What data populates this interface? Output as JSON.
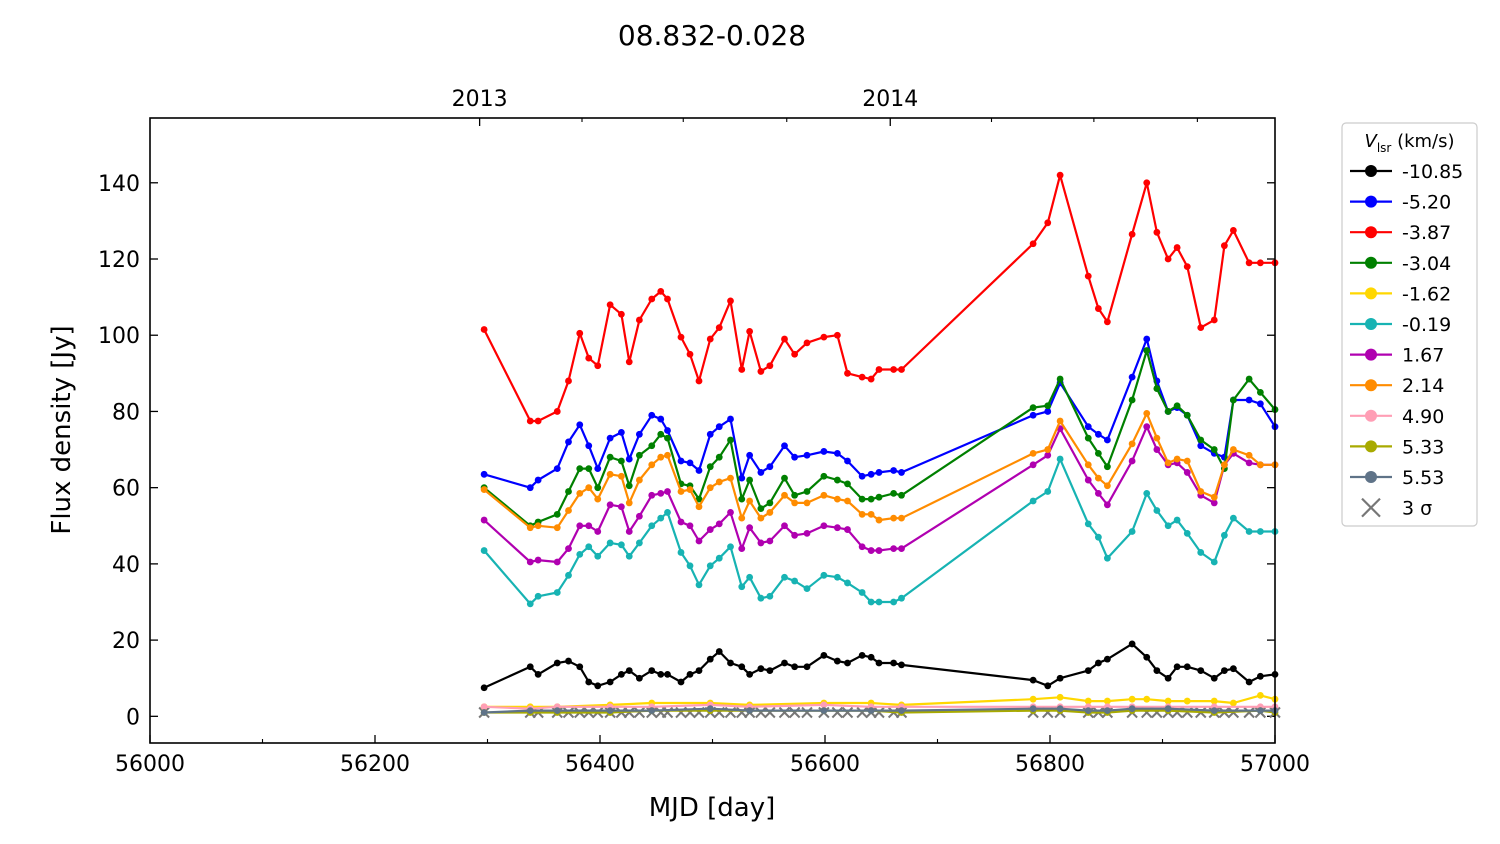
{
  "chart_data": {
    "type": "line",
    "title": "08.832-0.028",
    "xlabel": "MJD [day]",
    "ylabel": "Flux density [Jy]",
    "xlim": [
      56000,
      57000
    ],
    "ylim": [
      -7,
      157
    ],
    "x_ticks": [
      "56000",
      "56200",
      "56400",
      "56600",
      "56800",
      "57000"
    ],
    "y_ticks": [
      "0",
      "20",
      "40",
      "60",
      "80",
      "100",
      "120",
      "140"
    ],
    "top_axis": {
      "ticks": [
        {
          "mjd": 56293,
          "label": "2013"
        },
        {
          "mjd": 56658,
          "label": "2014"
        }
      ],
      "minor_ticks_mjd": [
        56384,
        56474,
        56566,
        56748,
        56839,
        56931
      ]
    },
    "legend": {
      "title_symbol": "V",
      "title_subscript": "lsr",
      "title_unit": " (km/s)",
      "position": "outside-right-top",
      "sigma_label": "3 σ"
    },
    "series": [
      {
        "name": "-10.85",
        "color": "#000000",
        "x": [
          56297,
          56338,
          56345,
          56362,
          56372,
          56382,
          56390,
          56398,
          56409,
          56419,
          56426,
          56435,
          56446,
          56454,
          56460,
          56472,
          56480,
          56488,
          56498,
          56506,
          56516,
          56526,
          56533,
          56543,
          56551,
          56564,
          56573,
          56584,
          56599,
          56611,
          56620,
          56633,
          56641,
          56648,
          56661,
          56668,
          56785,
          56798,
          56809,
          56834,
          56843,
          56851,
          56873,
          56886,
          56895,
          56905,
          56913,
          56922,
          56934,
          56946,
          56955,
          56963,
          56977,
          56987,
          57000
        ],
        "y": [
          7.5,
          13,
          11,
          14,
          14.5,
          13,
          9,
          8,
          9,
          11,
          12,
          10,
          12,
          11,
          11,
          9,
          11,
          12,
          15,
          17,
          14,
          13,
          11,
          12.5,
          12,
          14,
          13,
          13,
          16,
          14.5,
          14,
          16,
          15.5,
          14,
          14,
          13.5,
          9.5,
          8,
          10,
          12,
          14,
          15,
          19,
          15.5,
          12,
          10,
          13,
          13,
          12,
          10,
          12,
          12.5,
          9,
          10.5,
          11
        ]
      },
      {
        "name": "-5.20",
        "color": "#0000ff",
        "x": [
          56297,
          56338,
          56345,
          56362,
          56372,
          56382,
          56390,
          56398,
          56409,
          56419,
          56426,
          56435,
          56446,
          56454,
          56460,
          56472,
          56480,
          56488,
          56498,
          56506,
          56516,
          56526,
          56533,
          56543,
          56551,
          56564,
          56573,
          56584,
          56599,
          56611,
          56620,
          56633,
          56641,
          56648,
          56661,
          56668,
          56785,
          56798,
          56809,
          56834,
          56843,
          56851,
          56873,
          56886,
          56895,
          56905,
          56913,
          56922,
          56934,
          56946,
          56955,
          56963,
          56977,
          56987,
          57000
        ],
        "y": [
          63.5,
          60,
          62,
          65,
          72,
          76.5,
          71,
          65,
          73,
          74.5,
          67.5,
          74,
          79,
          78,
          75,
          67,
          66.5,
          64.5,
          74,
          76,
          78,
          62.5,
          68.5,
          64,
          65.5,
          71,
          68,
          68.5,
          69.5,
          69,
          67,
          63,
          63.5,
          64,
          64.5,
          64,
          79,
          80,
          87.5,
          76,
          74,
          72.5,
          89,
          99,
          88,
          80,
          81,
          79,
          71,
          69,
          68,
          83,
          83,
          82,
          76
        ]
      },
      {
        "name": "-3.87",
        "color": "#ff0000",
        "x": [
          56297,
          56338,
          56345,
          56362,
          56372,
          56382,
          56390,
          56398,
          56409,
          56419,
          56426,
          56435,
          56446,
          56454,
          56460,
          56472,
          56480,
          56488,
          56498,
          56506,
          56516,
          56526,
          56533,
          56543,
          56551,
          56564,
          56573,
          56584,
          56599,
          56611,
          56620,
          56633,
          56641,
          56648,
          56661,
          56668,
          56785,
          56798,
          56809,
          56834,
          56843,
          56851,
          56873,
          56886,
          56895,
          56905,
          56913,
          56922,
          56934,
          56946,
          56955,
          56963,
          56977,
          56987,
          57000
        ],
        "y": [
          101.5,
          77.5,
          77.5,
          80,
          88,
          100.5,
          94,
          92,
          108,
          105.5,
          93,
          104,
          109.5,
          111.5,
          109.5,
          99.5,
          95,
          88,
          99,
          102,
          109,
          91,
          101,
          90.5,
          92,
          99,
          95,
          98,
          99.5,
          100,
          90,
          89,
          88.5,
          91,
          91,
          91,
          124,
          129.5,
          142,
          115.5,
          107,
          103.5,
          126.5,
          140,
          127,
          120,
          123,
          118,
          102,
          104,
          123.5,
          127.5,
          119,
          119,
          119
        ]
      },
      {
        "name": "-3.04",
        "color": "#008000",
        "x": [
          56297,
          56338,
          56345,
          56362,
          56372,
          56382,
          56390,
          56398,
          56409,
          56419,
          56426,
          56435,
          56446,
          56454,
          56460,
          56472,
          56480,
          56488,
          56498,
          56506,
          56516,
          56526,
          56533,
          56543,
          56551,
          56564,
          56573,
          56584,
          56599,
          56611,
          56620,
          56633,
          56641,
          56648,
          56661,
          56668,
          56785,
          56798,
          56809,
          56834,
          56843,
          56851,
          56873,
          56886,
          56895,
          56905,
          56913,
          56922,
          56934,
          56946,
          56955,
          56963,
          56977,
          56987,
          57000
        ],
        "y": [
          60,
          50,
          51,
          53,
          59,
          65,
          65,
          60,
          68,
          67,
          60.5,
          68.5,
          71,
          74,
          73,
          61,
          60.5,
          57,
          65.5,
          68,
          72.5,
          57,
          62,
          54.5,
          56,
          62.5,
          58,
          59,
          63,
          62,
          61,
          57,
          57,
          57.5,
          58.5,
          58,
          81,
          81.5,
          88.5,
          73,
          69,
          65.5,
          83,
          96,
          86,
          80,
          81.5,
          79,
          72.5,
          70,
          65,
          83,
          88.5,
          85,
          80.5
        ]
      },
      {
        "name": "-1.62",
        "color": "#ffd700",
        "x": [
          56297,
          56338,
          56362,
          56409,
          56446,
          56498,
          56533,
          56599,
          56641,
          56668,
          56785,
          56809,
          56834,
          56851,
          56873,
          56886,
          56905,
          56922,
          56946,
          56963,
          56987,
          57000
        ],
        "y": [
          2.5,
          2.5,
          2.5,
          3,
          3.5,
          3.5,
          3,
          3.5,
          3.5,
          3,
          4.5,
          5,
          4,
          4,
          4.5,
          4.5,
          4,
          4,
          4,
          3.5,
          5.5,
          4.5
        ]
      },
      {
        "name": "-0.19",
        "color": "#17b3b3",
        "x": [
          56297,
          56338,
          56345,
          56362,
          56372,
          56382,
          56390,
          56398,
          56409,
          56419,
          56426,
          56435,
          56446,
          56454,
          56460,
          56472,
          56480,
          56488,
          56498,
          56506,
          56516,
          56526,
          56533,
          56543,
          56551,
          56564,
          56573,
          56584,
          56599,
          56611,
          56620,
          56633,
          56641,
          56648,
          56661,
          56668,
          56785,
          56798,
          56809,
          56834,
          56843,
          56851,
          56873,
          56886,
          56895,
          56905,
          56913,
          56922,
          56934,
          56946,
          56955,
          56963,
          56977,
          56987,
          57000
        ],
        "y": [
          43.5,
          29.5,
          31.5,
          32.5,
          37,
          42.5,
          44.5,
          42,
          45.5,
          45,
          42,
          45.5,
          50,
          52,
          53.5,
          43,
          39.5,
          34.5,
          39.5,
          41.5,
          44.5,
          34,
          36.5,
          31,
          31.5,
          36.5,
          35.5,
          33.5,
          37,
          36.5,
          35,
          32.5,
          30,
          30,
          30,
          31,
          56.5,
          59,
          67.5,
          50.5,
          47,
          41.5,
          48.5,
          58.5,
          54,
          50,
          51.5,
          48,
          43,
          40.5,
          47.5,
          52,
          48.5,
          48.5,
          48.5
        ]
      },
      {
        "name": "1.67",
        "color": "#b000b0",
        "x": [
          56297,
          56338,
          56345,
          56362,
          56372,
          56382,
          56390,
          56398,
          56409,
          56419,
          56426,
          56435,
          56446,
          56454,
          56460,
          56472,
          56480,
          56488,
          56498,
          56506,
          56516,
          56526,
          56533,
          56543,
          56551,
          56564,
          56573,
          56584,
          56599,
          56611,
          56620,
          56633,
          56641,
          56648,
          56661,
          56668,
          56785,
          56798,
          56809,
          56834,
          56843,
          56851,
          56873,
          56886,
          56895,
          56905,
          56913,
          56922,
          56934,
          56946,
          56955,
          56963,
          56977,
          56987,
          57000
        ],
        "y": [
          51.5,
          40.5,
          41,
          40.5,
          44,
          50,
          50,
          48.5,
          55.5,
          55,
          48.5,
          52.5,
          58,
          58.5,
          59,
          51,
          50,
          46,
          49,
          50.5,
          53.5,
          44,
          49.5,
          45.5,
          46,
          50,
          47.5,
          48,
          50,
          49.5,
          49,
          44.5,
          43.5,
          43.5,
          44,
          44,
          66,
          68.5,
          75.5,
          62,
          58.5,
          55.5,
          67,
          76,
          70,
          66,
          66.5,
          64,
          58,
          56,
          66,
          69,
          66.5,
          66,
          66
        ]
      },
      {
        "name": "2.14",
        "color": "#ff8c00",
        "x": [
          56297,
          56338,
          56345,
          56362,
          56372,
          56382,
          56390,
          56398,
          56409,
          56419,
          56426,
          56435,
          56446,
          56454,
          56460,
          56472,
          56480,
          56488,
          56498,
          56506,
          56516,
          56526,
          56533,
          56543,
          56551,
          56564,
          56573,
          56584,
          56599,
          56611,
          56620,
          56633,
          56641,
          56648,
          56661,
          56668,
          56785,
          56798,
          56809,
          56834,
          56843,
          56851,
          56873,
          56886,
          56895,
          56905,
          56913,
          56922,
          56934,
          56946,
          56955,
          56963,
          56977,
          56987,
          57000
        ],
        "y": [
          59.5,
          49.5,
          50,
          49.5,
          54,
          58.5,
          60,
          57,
          63.5,
          63,
          56,
          62,
          66,
          68,
          68.5,
          59,
          59.5,
          55,
          60,
          61.5,
          62.5,
          52,
          56.5,
          52,
          53.5,
          58,
          56,
          56,
          58,
          57,
          56.5,
          53,
          53,
          51.5,
          52,
          52,
          69,
          70,
          77.5,
          66,
          62.5,
          60.5,
          71.5,
          79.5,
          73,
          66.5,
          67.5,
          67,
          59,
          57.5,
          66,
          70,
          68.5,
          66,
          66
        ]
      },
      {
        "name": "4.90",
        "color": "#ff9eb5",
        "x": [
          56297,
          56338,
          56362,
          56409,
          56446,
          56498,
          56533,
          56599,
          56641,
          56668,
          56785,
          56809,
          56834,
          56851,
          56873,
          56905,
          56946,
          56987,
          57000
        ],
        "y": [
          2.5,
          2,
          2.5,
          2.5,
          2.5,
          3,
          2.5,
          3,
          2.5,
          2.5,
          2.5,
          2.5,
          2.5,
          2.5,
          2.5,
          2.5,
          2.5,
          2.5,
          2.5
        ]
      },
      {
        "name": "5.33",
        "color": "#a8aa00",
        "x": [
          56297,
          56338,
          56362,
          56409,
          56446,
          56498,
          56533,
          56599,
          56641,
          56668,
          56785,
          56809,
          56834,
          56851,
          56873,
          56905,
          56946,
          56987,
          57000
        ],
        "y": [
          1,
          1,
          1,
          1,
          1.5,
          1.5,
          1.5,
          1.5,
          1.5,
          1,
          1.5,
          1.5,
          1,
          1,
          1.5,
          1.5,
          1,
          1.5,
          1
        ]
      },
      {
        "name": "5.53",
        "color": "#5f7388",
        "x": [
          56297,
          56338,
          56362,
          56409,
          56446,
          56498,
          56533,
          56599,
          56641,
          56668,
          56785,
          56809,
          56834,
          56851,
          56873,
          56905,
          56946,
          56987,
          57000
        ],
        "y": [
          1,
          1.5,
          1.5,
          1.5,
          1.5,
          2,
          1.5,
          1.5,
          1.5,
          1.5,
          2,
          2,
          1.5,
          1.5,
          2,
          2,
          1.5,
          1.5,
          1.5
        ]
      }
    ],
    "sigma_markers": {
      "label": "3 σ",
      "color": "#777777",
      "x": [
        56297,
        56338,
        56345,
        56362,
        56372,
        56382,
        56390,
        56398,
        56409,
        56419,
        56426,
        56435,
        56446,
        56454,
        56460,
        56472,
        56480,
        56488,
        56498,
        56506,
        56516,
        56526,
        56533,
        56543,
        56551,
        56564,
        56573,
        56584,
        56599,
        56611,
        56620,
        56633,
        56641,
        56648,
        56661,
        56668,
        56785,
        56798,
        56809,
        56834,
        56843,
        56851,
        56873,
        56886,
        56895,
        56905,
        56913,
        56922,
        56934,
        56946,
        56955,
        56963,
        56977,
        56987,
        57000
      ],
      "y": [
        1,
        1,
        1,
        1,
        1,
        1,
        1,
        1,
        1,
        1,
        1,
        1,
        1,
        1,
        1,
        1,
        1,
        1,
        1,
        1,
        1,
        1,
        1,
        1,
        1,
        1,
        1,
        1,
        1,
        1,
        1,
        1,
        1,
        1,
        1,
        1,
        1,
        1,
        1,
        1,
        1,
        1,
        1,
        1,
        1,
        1,
        1,
        1,
        1,
        1,
        1,
        1,
        1,
        1,
        1
      ]
    },
    "grid": false
  }
}
